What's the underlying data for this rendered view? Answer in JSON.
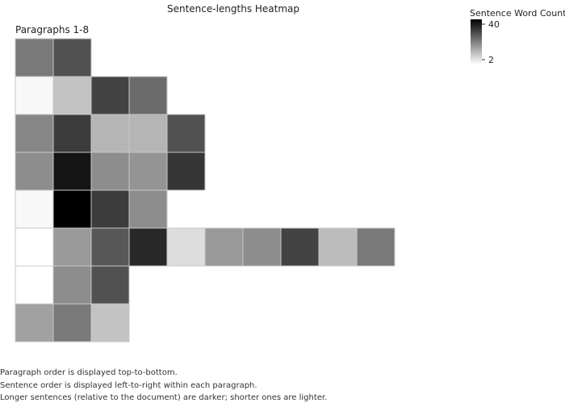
{
  "chart_data": {
    "type": "heatmap",
    "title": "Sentence-lengths Heatmap",
    "y_group_label": "Paragraphs 1-8",
    "legend": {
      "title": "Sentence Word Counts",
      "max_label": "40",
      "min_label": "2",
      "min": 2,
      "max": 40,
      "placement": "top-right"
    },
    "scale": {
      "low_color": "#ffffff",
      "high_color": "#000000"
    },
    "rows": [
      {
        "paragraph": 1,
        "values": [
          22,
          28
        ]
      },
      {
        "paragraph": 2,
        "values": [
          3,
          11,
          30,
          24
        ]
      },
      {
        "paragraph": 3,
        "values": [
          20,
          31,
          13,
          13,
          28
        ]
      },
      {
        "paragraph": 4,
        "values": [
          19,
          37,
          19,
          18,
          32
        ]
      },
      {
        "paragraph": 5,
        "values": [
          3,
          40,
          31,
          19
        ]
      },
      {
        "paragraph": 6,
        "values": [
          2,
          17,
          27,
          34,
          7,
          17,
          19,
          30,
          12,
          22
        ]
      },
      {
        "paragraph": 7,
        "values": [
          2,
          19,
          28
        ]
      },
      {
        "paragraph": 8,
        "values": [
          16,
          22,
          11
        ]
      }
    ]
  },
  "notes": [
    "Paragraph order is displayed top-to-bottom.",
    "Sentence order is displayed left-to-right within each paragraph.",
    "Longer sentences (relative to the document) are darker; shorter ones are lighter."
  ]
}
